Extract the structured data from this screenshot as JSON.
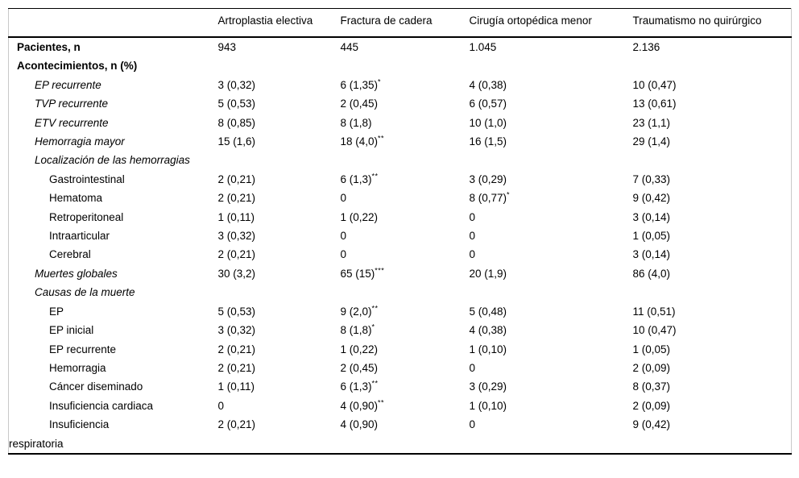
{
  "table": {
    "columns": [
      "Artroplastia electiva",
      "Fractura de cadera",
      "Cirugía ortopédica menor",
      "Traumatismo no quirúrgico"
    ],
    "rows": [
      {
        "label": "Pacientes, n",
        "emphasis": "bold",
        "indent": 0,
        "hang": false,
        "cells": [
          "943",
          "445",
          "1.045",
          "2.136"
        ]
      },
      {
        "label": "Acontecimientos, n (%)",
        "emphasis": "bold",
        "indent": 0,
        "hang": false,
        "cells": [
          "",
          "",
          "",
          ""
        ]
      },
      {
        "label": "EP recurrente",
        "emphasis": "italic",
        "indent": 1,
        "hang": false,
        "cells": [
          "3 (0,32)",
          "6 (1,35)^*",
          "4 (0,38)",
          "10 (0,47)"
        ]
      },
      {
        "label": "TVP recurrente",
        "emphasis": "italic",
        "indent": 1,
        "hang": false,
        "cells": [
          "5 (0,53)",
          "2 (0,45)",
          "6 (0,57)",
          "13 (0,61)"
        ]
      },
      {
        "label": "ETV recurrente",
        "emphasis": "italic",
        "indent": 1,
        "hang": false,
        "cells": [
          "8 (0,85)",
          "8 (1,8)",
          "10 (1,0)",
          "23 (1,1)"
        ]
      },
      {
        "label": "Hemorragia mayor",
        "emphasis": "italic",
        "indent": 1,
        "hang": false,
        "cells": [
          "15 (1,6)",
          "18 (4,0)^**",
          "16 (1,5)",
          "29 (1,4)"
        ]
      },
      {
        "label": "Localización de las hemorragias",
        "emphasis": "italic",
        "indent": 1,
        "hang": false,
        "cells": [
          "",
          "",
          "",
          ""
        ]
      },
      {
        "label": "Gastrointestinal",
        "emphasis": "none",
        "indent": 2,
        "hang": false,
        "cells": [
          "2 (0,21)",
          "6 (1,3)^**",
          "3 (0,29)",
          "7 (0,33)"
        ]
      },
      {
        "label": "Hematoma",
        "emphasis": "none",
        "indent": 2,
        "hang": false,
        "cells": [
          "2 (0,21)",
          "0",
          "8 (0,77)^*",
          "9 (0,42)"
        ]
      },
      {
        "label": "Retroperitoneal",
        "emphasis": "none",
        "indent": 2,
        "hang": false,
        "cells": [
          "1 (0,11)",
          "1 (0,22)",
          "0",
          "3 (0,14)"
        ]
      },
      {
        "label": "Intraarticular",
        "emphasis": "none",
        "indent": 2,
        "hang": false,
        "cells": [
          "3 (0,32)",
          "0",
          "0",
          "1 (0,05)"
        ]
      },
      {
        "label": "Cerebral",
        "emphasis": "none",
        "indent": 2,
        "hang": false,
        "cells": [
          "2 (0,21)",
          "0",
          "0",
          "3 (0,14)"
        ]
      },
      {
        "label": "Muertes globales",
        "emphasis": "italic",
        "indent": 1,
        "hang": false,
        "cells": [
          "30 (3,2)",
          "65 (15)^***",
          "20 (1,9)",
          "86 (4,0)"
        ]
      },
      {
        "label": "Causas de la muerte",
        "emphasis": "italic",
        "indent": 1,
        "hang": false,
        "cells": [
          "",
          "",
          "",
          ""
        ]
      },
      {
        "label": "EP",
        "emphasis": "none",
        "indent": 2,
        "hang": false,
        "cells": [
          "5 (0,53)",
          "9 (2,0)^**",
          "5 (0,48)",
          "11 (0,51)"
        ]
      },
      {
        "label": "EP inicial",
        "emphasis": "none",
        "indent": 2,
        "hang": false,
        "cells": [
          "3 (0,32)",
          "8 (1,8)^*",
          "4 (0,38)",
          "10 (0,47)"
        ]
      },
      {
        "label": "EP recurrente",
        "emphasis": "none",
        "indent": 2,
        "hang": false,
        "cells": [
          "2 (0,21)",
          "1 (0,22)",
          "1 (0,10)",
          "1 (0,05)"
        ]
      },
      {
        "label": "Hemorragia",
        "emphasis": "none",
        "indent": 2,
        "hang": false,
        "cells": [
          "2 (0,21)",
          "2 (0,45)",
          "0",
          "2 (0,09)"
        ]
      },
      {
        "label": "Cáncer diseminado",
        "emphasis": "none",
        "indent": 2,
        "hang": false,
        "cells": [
          "1 (0,11)",
          "6 (1,3)^**",
          "3 (0,29)",
          "8 (0,37)"
        ]
      },
      {
        "label": "Insuficiencia cardiaca",
        "emphasis": "none",
        "indent": 2,
        "hang": false,
        "cells": [
          "0",
          "4 (0,90)^**",
          "1 (0,10)",
          "2 (0,09)"
        ]
      },
      {
        "label": "Insuficiencia\nrespiratoria",
        "emphasis": "none",
        "indent": 2,
        "hang": true,
        "cells": [
          "2 (0,21)",
          "4 (0,90)",
          "0",
          "9 (0,42)"
        ]
      }
    ]
  },
  "colors": {
    "text": "#000000",
    "horizontal_rule": "#000000",
    "side_border": "#c9c9c9",
    "background": "#ffffff"
  }
}
